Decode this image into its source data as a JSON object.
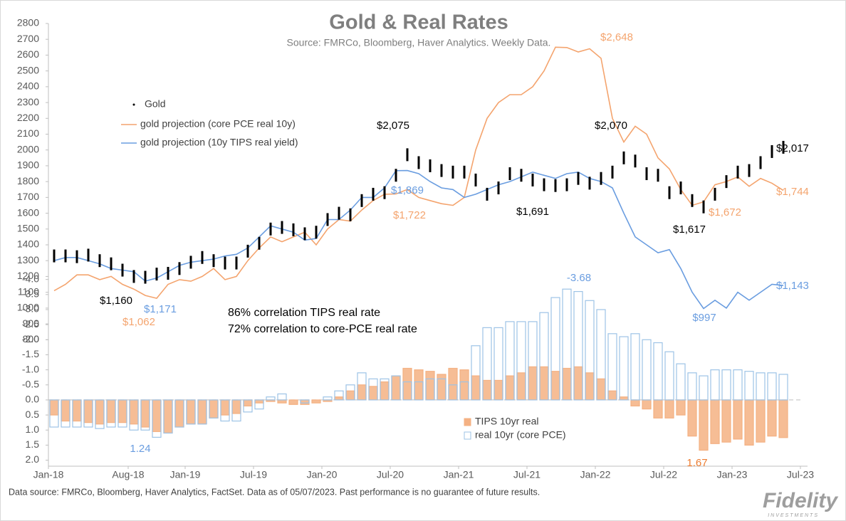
{
  "chart_data": {
    "type": "line",
    "title": "Gold & Real Rates",
    "subtitle": "Source: FMRCo, Bloomberg, Haver Analytics. Weekly Data.",
    "x": [
      "2018-01",
      "2018-02",
      "2018-03",
      "2018-04",
      "2018-05",
      "2018-06",
      "2018-07",
      "2018-08",
      "2018-09",
      "2018-10",
      "2018-11",
      "2018-12",
      "2019-01",
      "2019-02",
      "2019-03",
      "2019-04",
      "2019-05",
      "2019-06",
      "2019-07",
      "2019-08",
      "2019-09",
      "2019-10",
      "2019-11",
      "2019-12",
      "2020-01",
      "2020-02",
      "2020-03",
      "2020-04",
      "2020-05",
      "2020-06",
      "2020-07",
      "2020-08",
      "2020-09",
      "2020-10",
      "2020-11",
      "2020-12",
      "2021-01",
      "2021-02",
      "2021-03",
      "2021-04",
      "2021-05",
      "2021-06",
      "2021-07",
      "2021-08",
      "2021-09",
      "2021-10",
      "2021-11",
      "2021-12",
      "2022-01",
      "2022-02",
      "2022-03",
      "2022-04",
      "2022-05",
      "2022-06",
      "2022-07",
      "2022-08",
      "2022-09",
      "2022-10",
      "2022-11",
      "2022-12",
      "2023-01",
      "2023-02",
      "2023-03",
      "2023-04",
      "2023-05"
    ],
    "xticks": [
      {
        "value": "2018-01",
        "label": "Jan-18"
      },
      {
        "value": "2018-08",
        "label": "Aug-18"
      },
      {
        "value": "2019-01",
        "label": "Jan-19"
      },
      {
        "value": "2019-07",
        "label": "Jul-19"
      },
      {
        "value": "2020-01",
        "label": "Jan-20"
      },
      {
        "value": "2020-07",
        "label": "Jul-20"
      },
      {
        "value": "2021-01",
        "label": "Jan-21"
      },
      {
        "value": "2021-07",
        "label": "Jul-21"
      },
      {
        "value": "2022-01",
        "label": "Jan-22"
      },
      {
        "value": "2022-07",
        "label": "Jul-22"
      },
      {
        "value": "2023-01",
        "label": "Jan-23"
      },
      {
        "value": "2023-07",
        "label": "Jul-23"
      }
    ],
    "ylim": [
      0,
      2800
    ],
    "yticks": [
      800,
      900,
      1000,
      1100,
      1200,
      1300,
      1400,
      1500,
      1600,
      1700,
      1800,
      1900,
      2000,
      2100,
      2200,
      2300,
      2400,
      2500,
      2600,
      2700,
      2800
    ],
    "y2lim": [
      -12.5,
      2.2
    ],
    "y2_inverted": true,
    "y2ticks": [
      {
        "value": -4,
        "label": "-4.0"
      },
      -3.5,
      {
        "value": -3,
        "label": "-3.0"
      },
      -2.5,
      {
        "value": -2,
        "label": "-2.0"
      },
      -1.5,
      {
        "value": -1,
        "label": "-1.0"
      },
      -0.5,
      {
        "value": 0,
        "label": "0.0"
      },
      0.5,
      {
        "value": 1,
        "label": "1.0"
      },
      1.5,
      {
        "value": 2,
        "label": "2.0"
      }
    ],
    "series": [
      {
        "name": "Gold",
        "color": "#000000",
        "kind": "ohlc",
        "values": [
          1330,
          1330,
          1325,
          1335,
          1300,
          1280,
          1240,
          1200,
          1195,
          1215,
          1220,
          1250,
          1290,
          1320,
          1300,
          1285,
          1285,
          1360,
          1410,
          1500,
          1510,
          1495,
          1470,
          1480,
          1560,
          1600,
          1590,
          1680,
          1720,
          1730,
          1840,
          1970,
          1920,
          1900,
          1870,
          1860,
          1860,
          1810,
          1720,
          1760,
          1850,
          1840,
          1810,
          1780,
          1775,
          1780,
          1820,
          1790,
          1820,
          1860,
          1950,
          1930,
          1850,
          1840,
          1730,
          1760,
          1680,
          1640,
          1720,
          1800,
          1860,
          1870,
          1920,
          1990,
          2017
        ]
      },
      {
        "name": "gold projection (core PCE real 10y)",
        "color": "#f4a46e",
        "kind": "line",
        "values": [
          1110,
          1150,
          1210,
          1210,
          1180,
          1200,
          1150,
          1120,
          1080,
          1062,
          1150,
          1180,
          1170,
          1200,
          1250,
          1180,
          1200,
          1300,
          1380,
          1450,
          1420,
          1450,
          1480,
          1400,
          1500,
          1560,
          1550,
          1620,
          1680,
          1720,
          1722,
          1750,
          1700,
          1680,
          1660,
          1650,
          1700,
          2000,
          2200,
          2300,
          2350,
          2350,
          2400,
          2500,
          2650,
          2648,
          2620,
          2640,
          2580,
          2200,
          2050,
          2150,
          2100,
          1950,
          1880,
          1750,
          1650,
          1672,
          1780,
          1800,
          1830,
          1770,
          1820,
          1790,
          1744
        ]
      },
      {
        "name": "gold projection (10y TIPS real yield)",
        "color": "#6a9de0",
        "kind": "line",
        "values": [
          1300,
          1320,
          1320,
          1300,
          1280,
          1250,
          1240,
          1230,
          1171,
          1190,
          1230,
          1270,
          1290,
          1300,
          1310,
          1330,
          1340,
          1380,
          1450,
          1520,
          1500,
          1480,
          1430,
          1440,
          1560,
          1560,
          1620,
          1700,
          1700,
          1760,
          1869,
          1870,
          1850,
          1800,
          1760,
          1750,
          1700,
          1720,
          1750,
          1780,
          1800,
          1830,
          1860,
          1840,
          1820,
          1850,
          1860,
          1820,
          1800,
          1760,
          1600,
          1450,
          1400,
          1350,
          1370,
          1250,
          1100,
          997,
          1050,
          1000,
          1100,
          1050,
          1100,
          1150,
          1143
        ]
      },
      {
        "name": "TIPS 10yr real",
        "color": "#f4b183",
        "kind": "bar",
        "axis": "y2",
        "values": [
          0.5,
          0.7,
          0.7,
          0.75,
          0.8,
          0.75,
          0.75,
          0.8,
          0.9,
          1.05,
          1.1,
          0.9,
          0.8,
          0.8,
          0.6,
          0.5,
          0.45,
          0.2,
          0.1,
          0.05,
          0.1,
          0.15,
          0.15,
          0.1,
          0.05,
          -0.1,
          -0.3,
          -0.5,
          -0.45,
          -0.6,
          -0.8,
          -1.05,
          -1.0,
          -0.95,
          -0.85,
          -1.05,
          -1.0,
          -0.8,
          -0.65,
          -0.65,
          -0.8,
          -0.9,
          -1.1,
          -1.1,
          -0.95,
          -1.05,
          -1.1,
          -0.9,
          -0.7,
          -0.3,
          -0.1,
          0.2,
          0.3,
          0.6,
          0.6,
          0.5,
          1.2,
          1.67,
          1.45,
          1.4,
          1.3,
          1.5,
          1.4,
          1.2,
          1.25
        ]
      },
      {
        "name": "real 10yr (core PCE)",
        "color": "#9dc3e6",
        "kind": "bar",
        "axis": "y2",
        "values": [
          0.9,
          0.9,
          0.9,
          0.9,
          0.95,
          0.9,
          0.9,
          1.0,
          1.0,
          1.24,
          1.1,
          0.9,
          0.8,
          0.8,
          0.6,
          0.7,
          0.7,
          0.4,
          0.3,
          -0.1,
          -0.2,
          0.0,
          0.1,
          0.0,
          -0.1,
          -0.3,
          -0.5,
          -0.9,
          -0.7,
          -0.7,
          -0.8,
          -0.6,
          -0.6,
          -0.7,
          -0.7,
          -0.5,
          -0.6,
          -1.8,
          -2.4,
          -2.4,
          -2.6,
          -2.6,
          -2.6,
          -2.9,
          -3.4,
          -3.68,
          -3.6,
          -3.3,
          -3.0,
          -2.2,
          -2.1,
          -2.2,
          -2.0,
          -1.9,
          -1.6,
          -1.2,
          -0.9,
          -0.8,
          -1.0,
          -1.0,
          -1.0,
          -0.95,
          -0.9,
          -0.9,
          -0.85
        ]
      }
    ],
    "annotations": [
      {
        "text": "$2,648",
        "color": "#f4a46e"
      },
      {
        "text": "$2,075",
        "color": "#000000"
      },
      {
        "text": "$2,070",
        "color": "#000000"
      },
      {
        "text": "$2,017",
        "color": "#000000"
      },
      {
        "text": "$1,869",
        "color": "#6a9de0"
      },
      {
        "text": "$1,744",
        "color": "#f4a46e"
      },
      {
        "text": "$1,722",
        "color": "#f4a46e"
      },
      {
        "text": "$1,691",
        "color": "#000000"
      },
      {
        "text": "$1,672",
        "color": "#f4a46e"
      },
      {
        "text": "$1,617",
        "color": "#000000"
      },
      {
        "text": "$1,160",
        "color": "#000000"
      },
      {
        "text": "$1,171",
        "color": "#6a9de0"
      },
      {
        "text": "$1,062",
        "color": "#f4a46e"
      },
      {
        "text": "$997",
        "color": "#6a9de0"
      },
      {
        "text": "$1,143",
        "color": "#6a9de0"
      },
      {
        "text": "-3.68",
        "color": "#6a9de0"
      },
      {
        "text": "1.24",
        "color": "#6a9de0"
      },
      {
        "text": "1.67",
        "color": "#ed7d31"
      },
      {
        "text": "86% correlation TIPS real rate",
        "color": "#000000"
      },
      {
        "text": "72% correlation to core-PCE real rate",
        "color": "#000000"
      }
    ],
    "footnote": "Data source: FMRCo, Bloomberg, Haver Analytics, FactSet. Data as of 05/07/2023. Past performance is no guarantee of future results.",
    "logo": "Fidelity",
    "logo_sub": "INVESTMENTS"
  }
}
